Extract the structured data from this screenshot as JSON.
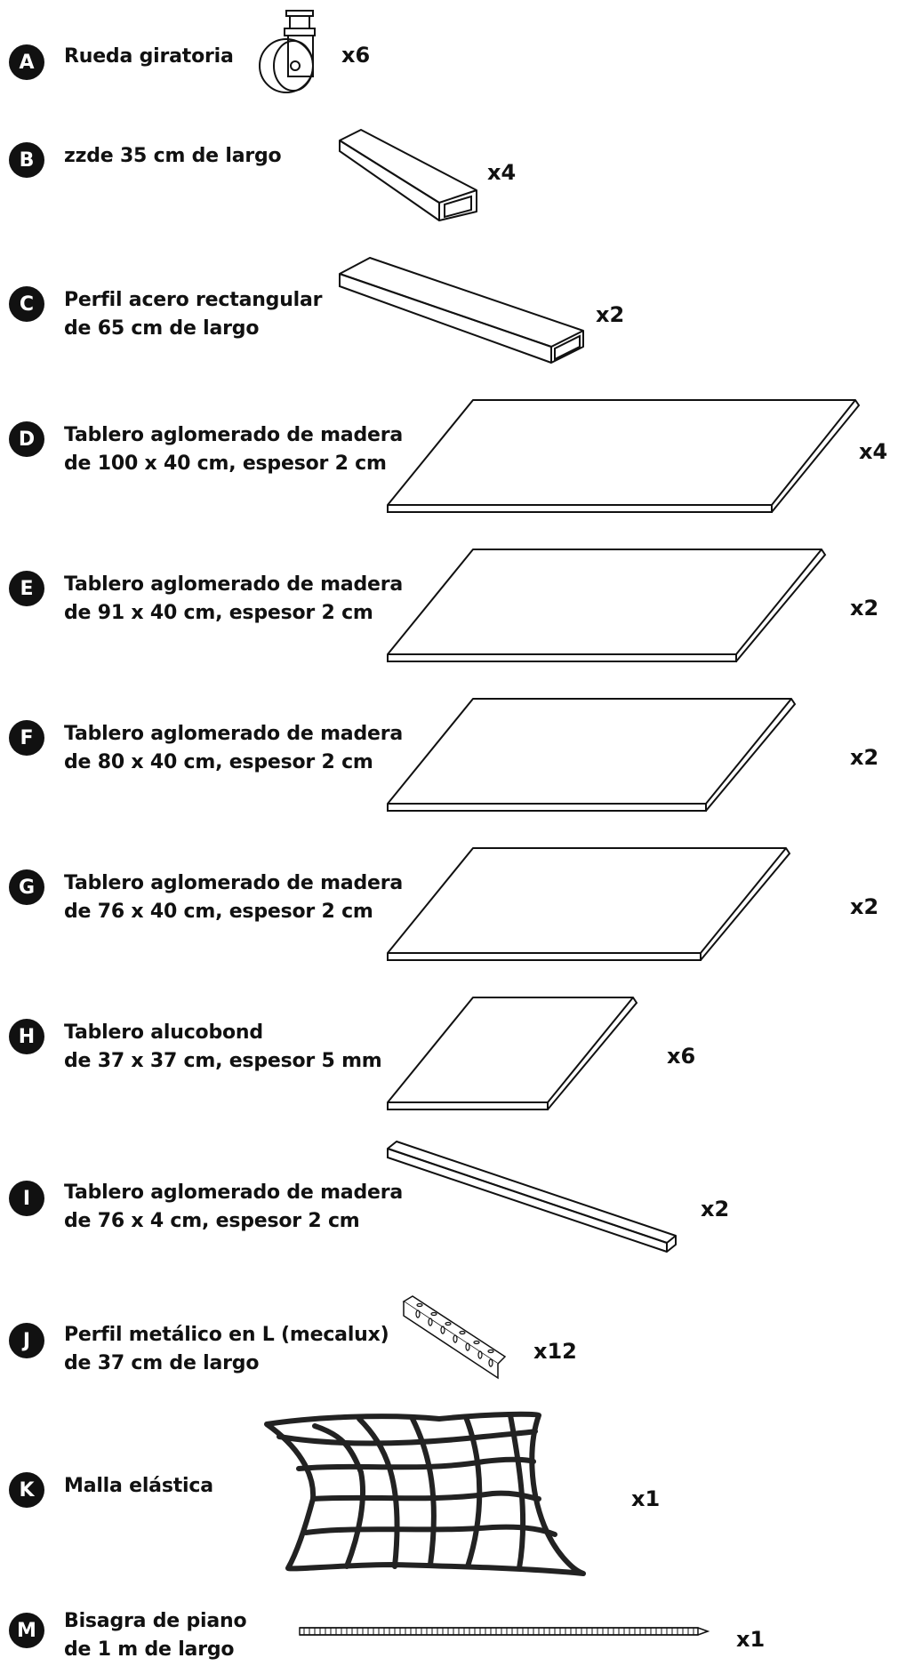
{
  "parts": [
    {
      "letter": "A",
      "line1": "Rueda giratoria",
      "line2": "",
      "qty": "x6",
      "icon": "swivel-caster-wheel"
    },
    {
      "letter": "B",
      "line1": "zzde 35 cm de largo",
      "line2": "",
      "qty": "x4",
      "icon": "rectangular-steel-tube-short"
    },
    {
      "letter": "C",
      "line1": "Perfil acero rectangular",
      "line2": "de 65 cm de largo",
      "qty": "x2",
      "icon": "rectangular-steel-tube-long"
    },
    {
      "letter": "D",
      "line1": "Tablero aglomerado de madera",
      "line2": "de 100 x 40 cm, espesor 2 cm",
      "qty": "x4",
      "icon": "wood-board"
    },
    {
      "letter": "E",
      "line1": "Tablero aglomerado de madera",
      "line2": "de 91 x 40 cm, espesor 2 cm",
      "qty": "x2",
      "icon": "wood-board"
    },
    {
      "letter": "F",
      "line1": "Tablero aglomerado de madera",
      "line2": "de 80 x 40 cm, espesor 2 cm",
      "qty": "x2",
      "icon": "wood-board"
    },
    {
      "letter": "G",
      "line1": "Tablero aglomerado de madera",
      "line2": "de 76 x 40 cm, espesor 2 cm",
      "qty": "x2",
      "icon": "wood-board"
    },
    {
      "letter": "H",
      "line1": "Tablero alucobond",
      "line2": "de 37 x 37 cm, espesor 5 mm",
      "qty": "x6",
      "icon": "alucobond-panel"
    },
    {
      "letter": "I",
      "line1": "Tablero aglomerado de madera",
      "line2": "de 76 x 4 cm, espesor 2 cm",
      "qty": "x2",
      "icon": "wood-strip"
    },
    {
      "letter": "J",
      "line1": "Perfil metálico en L (mecalux)",
      "line2": "de 37 cm de largo",
      "qty": "x12",
      "icon": "slotted-angle-profile"
    },
    {
      "letter": "K",
      "line1": "Malla elástica",
      "line2": "",
      "qty": "x1",
      "icon": "elastic-net"
    },
    {
      "letter": "M",
      "line1": "Bisagra de piano",
      "line2": "de 1 m de largo",
      "qty": "x1",
      "icon": "piano-hinge"
    }
  ]
}
